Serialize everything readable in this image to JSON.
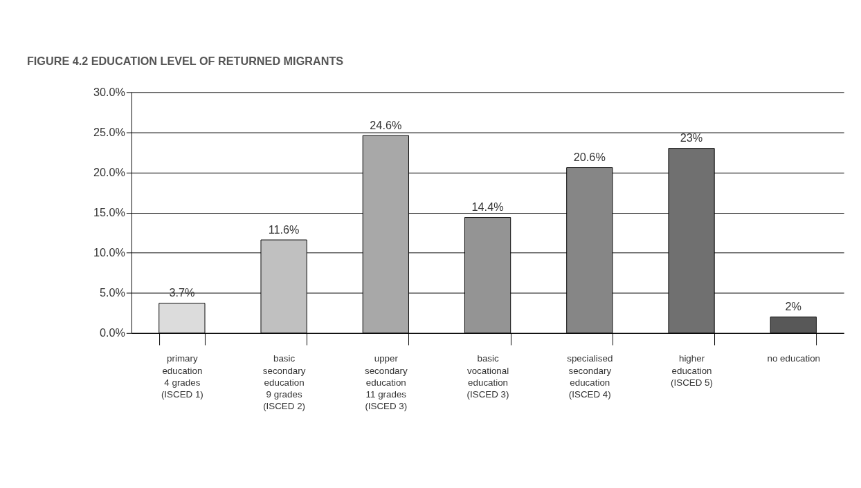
{
  "chart_data": {
    "type": "bar",
    "title": "FIGURE 4.2 EDUCATION LEVEL OF RETURNED MIGRANTS",
    "categories": [
      "primary\neducation\n4 grades\n(ISCED 1)",
      "basic\nsecondary\neducation\n9 grades\n(ISCED 2)",
      "upper\nsecondary\neducation\n11 grades\n(ISCED 3)",
      "basic\nvocational\neducation\n(ISCED 3)",
      "specialised\nsecondary\neducation\n(ISCED 4)",
      "higher\neducation\n(ISCED 5)",
      "no education"
    ],
    "values": [
      3.7,
      11.6,
      24.6,
      14.4,
      20.6,
      23,
      2
    ],
    "value_labels": [
      "3.7%",
      "11.6%",
      "24.6%",
      "14.4%",
      "20.6%",
      "23%",
      "2%"
    ],
    "colors": [
      "#dcdcdc",
      "#c0c0c0",
      "#a8a8a8",
      "#949494",
      "#868686",
      "#707070",
      "#585858"
    ],
    "ylim": [
      0,
      30
    ],
    "yticks": [
      {
        "value": 0,
        "label": "0.0%"
      },
      {
        "value": 5,
        "label": "5.0%"
      },
      {
        "value": 10,
        "label": "10.0%"
      },
      {
        "value": 15,
        "label": "15.0%"
      },
      {
        "value": 20,
        "label": "20.0%"
      },
      {
        "value": 25,
        "label": "25.0%"
      },
      {
        "value": 30,
        "label": "30.0%"
      }
    ],
    "grid": "y"
  }
}
